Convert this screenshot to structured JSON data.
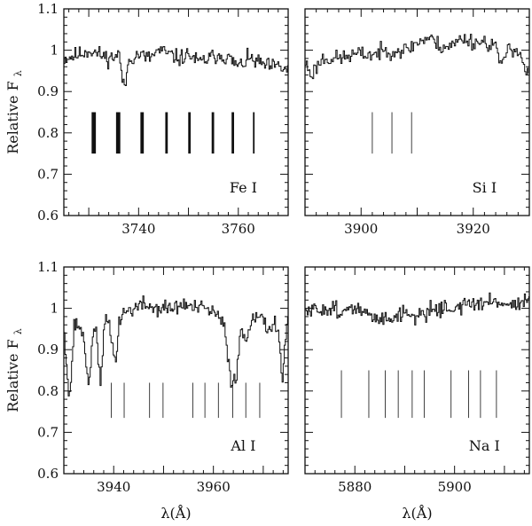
{
  "chart_data": [
    {
      "type": "line",
      "label": "Fe I",
      "xlim": [
        3725,
        3770
      ],
      "ylim": [
        0.6,
        1.1
      ],
      "xticks": [
        3740,
        3760
      ],
      "yticks": [
        0.6,
        0.7,
        0.8,
        0.9,
        1,
        1.1
      ],
      "ylabel": "Relative F",
      "ylabel_sub": "λ",
      "xlabel": "",
      "line_positions": [
        3731,
        3735.9,
        3740.7,
        3745.6,
        3750.2,
        3754.9,
        3758.9,
        3763.1
      ],
      "line_weights": [
        5,
        5,
        4,
        3,
        3,
        3,
        3,
        2
      ],
      "marker_range": [
        0.75,
        0.85
      ],
      "spectrum": {
        "x_start": 3725,
        "x_end": 3770,
        "points": [
          [
            3725,
            0.98
          ],
          [
            3728,
            0.99
          ],
          [
            3730,
            1.0
          ],
          [
            3732,
            0.99
          ],
          [
            3734,
            0.98
          ],
          [
            3736,
            0.99
          ],
          [
            3737,
            0.9
          ],
          [
            3738,
            0.98
          ],
          [
            3740,
            0.99
          ],
          [
            3742,
            0.98
          ],
          [
            3744,
            1.0
          ],
          [
            3746,
            0.99
          ],
          [
            3748,
            0.98
          ],
          [
            3750,
            0.99
          ],
          [
            3752,
            0.97
          ],
          [
            3754,
            0.98
          ],
          [
            3756,
            0.99
          ],
          [
            3758,
            0.98
          ],
          [
            3760,
            0.96
          ],
          [
            3762,
            0.98
          ],
          [
            3764,
            0.97
          ],
          [
            3766,
            0.96
          ],
          [
            3768,
            0.96
          ],
          [
            3770,
            0.95
          ]
        ],
        "noise": 0.012,
        "seed": 11
      }
    },
    {
      "type": "line",
      "label": "Si I",
      "xlim": [
        3890,
        3930
      ],
      "ylim": [
        0.6,
        1.1
      ],
      "xticks": [
        3900,
        3920
      ],
      "yticks": [
        0.6,
        0.7,
        0.8,
        0.9,
        1,
        1.1
      ],
      "ylabel": "",
      "xlabel": "",
      "line_positions": [
        3902,
        3905.5,
        3909
      ],
      "line_weights": [
        1,
        1,
        1
      ],
      "marker_range": [
        0.75,
        0.85
      ],
      "spectrum": {
        "x_start": 3890,
        "x_end": 3930,
        "points": [
          [
            3890,
            0.97
          ],
          [
            3891,
            0.94
          ],
          [
            3893,
            0.98
          ],
          [
            3896,
            0.98
          ],
          [
            3899,
            0.99
          ],
          [
            3902,
            0.99
          ],
          [
            3905,
            1.0
          ],
          [
            3908,
            1.0
          ],
          [
            3910,
            1.02
          ],
          [
            3912,
            1.03
          ],
          [
            3914,
            1.01
          ],
          [
            3916,
            1.01
          ],
          [
            3918,
            1.03
          ],
          [
            3920,
            1.02
          ],
          [
            3922,
            1.02
          ],
          [
            3924,
            1.01
          ],
          [
            3925,
            0.95
          ],
          [
            3926,
            1.01
          ],
          [
            3928,
            1.0
          ],
          [
            3929,
            0.96
          ],
          [
            3930,
            0.93
          ]
        ],
        "noise": 0.012,
        "seed": 23
      }
    },
    {
      "type": "line",
      "label": "Al I",
      "xlim": [
        3930,
        3975
      ],
      "ylim": [
        0.6,
        1.1
      ],
      "xticks": [
        3940,
        3960
      ],
      "yticks": [
        0.6,
        0.7,
        0.8,
        0.9,
        1,
        1.1
      ],
      "ylabel": "Relative F",
      "ylabel_sub": "λ",
      "xlabel": "λ(Å)",
      "line_positions": [
        3939.5,
        3942.1,
        3947.2,
        3949.9,
        3955.9,
        3958.3,
        3961.0,
        3963.9,
        3966.5,
        3969.3
      ],
      "line_weights": [
        1,
        1,
        1,
        1,
        1,
        1,
        1,
        1,
        1,
        1
      ],
      "marker_range": [
        0.735,
        0.82
      ],
      "spectrum": {
        "x_start": 3930,
        "x_end": 3975,
        "points": [
          [
            3930,
            0.95
          ],
          [
            3931,
            0.77
          ],
          [
            3932,
            0.96
          ],
          [
            3933,
            0.96
          ],
          [
            3934,
            0.92
          ],
          [
            3935,
            0.8
          ],
          [
            3935.8,
            0.96
          ],
          [
            3936.5,
            0.94
          ],
          [
            3937.3,
            0.8
          ],
          [
            3938,
            0.96
          ],
          [
            3939,
            0.97
          ],
          [
            3939.7,
            0.9
          ],
          [
            3940.5,
            0.88
          ],
          [
            3941,
            0.97
          ],
          [
            3942,
            0.99
          ],
          [
            3944,
            1.0
          ],
          [
            3946,
            1.01
          ],
          [
            3948,
            1.0
          ],
          [
            3950,
            1.0
          ],
          [
            3952,
            1.0
          ],
          [
            3954,
            1.01
          ],
          [
            3956,
            1.0
          ],
          [
            3958,
            1.0
          ],
          [
            3960,
            0.99
          ],
          [
            3962,
            0.96
          ],
          [
            3963.5,
            0.82
          ],
          [
            3964.5,
            0.84
          ],
          [
            3965.5,
            0.95
          ],
          [
            3966.5,
            0.92
          ],
          [
            3967.5,
            0.98
          ],
          [
            3969,
            0.99
          ],
          [
            3970,
            0.96
          ],
          [
            3971,
            0.95
          ],
          [
            3972,
            0.97
          ],
          [
            3973,
            0.94
          ],
          [
            3973.8,
            0.82
          ],
          [
            3974.5,
            0.95
          ],
          [
            3975,
            0.97
          ]
        ],
        "noise": 0.012,
        "seed": 37
      }
    },
    {
      "type": "line",
      "label": "Na I",
      "xlim": [
        5870,
        5915
      ],
      "ylim": [
        0.6,
        1.1
      ],
      "xticks": [
        5880,
        5900
      ],
      "yticks": [
        0.6,
        0.7,
        0.8,
        0.9,
        1,
        1.1
      ],
      "ylabel": "",
      "xlabel": "λ(Å)",
      "line_positions": [
        5877.3,
        5882.8,
        5886.1,
        5888.7,
        5891.5,
        5893.9,
        5899.3,
        5902.8,
        5905.2,
        5908.4
      ],
      "line_weights": [
        1,
        1,
        1,
        1,
        1,
        1,
        1,
        1,
        1,
        1
      ],
      "marker_range": [
        0.735,
        0.85
      ],
      "spectrum": {
        "x_start": 5870,
        "x_end": 5915,
        "points": [
          [
            5870,
            0.99
          ],
          [
            5874,
            1.0
          ],
          [
            5876,
            1.0
          ],
          [
            5878,
            0.99
          ],
          [
            5880,
            1.0
          ],
          [
            5882,
            0.99
          ],
          [
            5884,
            0.97
          ],
          [
            5886,
            0.98
          ],
          [
            5888,
            0.98
          ],
          [
            5890,
            0.99
          ],
          [
            5892,
            0.98
          ],
          [
            5894,
            0.99
          ],
          [
            5896,
            1.0
          ],
          [
            5898,
            1.0
          ],
          [
            5900,
            1.0
          ],
          [
            5902,
            1.01
          ],
          [
            5904,
            1.01
          ],
          [
            5906,
            1.01
          ],
          [
            5908,
            1.02
          ],
          [
            5910,
            1.01
          ],
          [
            5912,
            1.01
          ],
          [
            5914,
            1.02
          ],
          [
            5915,
            1.02
          ]
        ],
        "noise": 0.012,
        "seed": 51
      }
    }
  ]
}
